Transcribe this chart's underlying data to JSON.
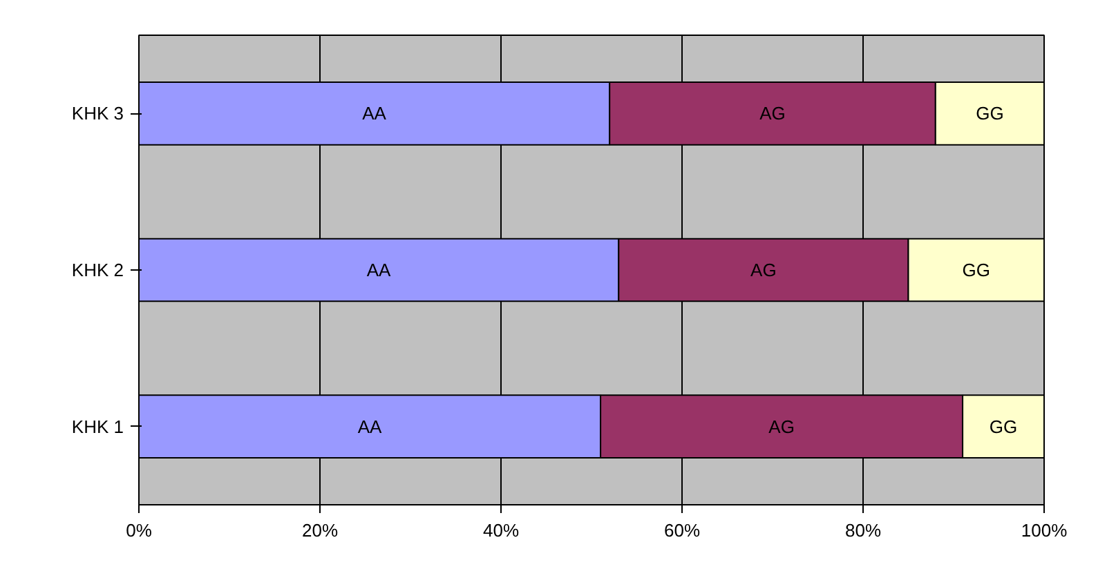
{
  "chart_data": {
    "type": "bar",
    "orientation": "horizontal",
    "stacked": true,
    "categories": [
      "KHK 3",
      "KHK 2",
      "KHK 1"
    ],
    "series": [
      {
        "name": "AA",
        "color": "#9999ff",
        "values": [
          52,
          53,
          51
        ]
      },
      {
        "name": "AG",
        "color": "#993366",
        "values": [
          36,
          32,
          40
        ]
      },
      {
        "name": "GG",
        "color": "#ffffcc",
        "values": [
          12,
          15,
          9
        ]
      }
    ],
    "xlim": [
      0,
      100
    ],
    "xticks": [
      {
        "value": 0,
        "label": "0%"
      },
      {
        "value": 20,
        "label": "20%"
      },
      {
        "value": 40,
        "label": "40%"
      },
      {
        "value": 60,
        "label": "60%"
      },
      {
        "value": 80,
        "label": "80%"
      },
      {
        "value": 100,
        "label": "100%"
      }
    ],
    "grid": "x"
  }
}
